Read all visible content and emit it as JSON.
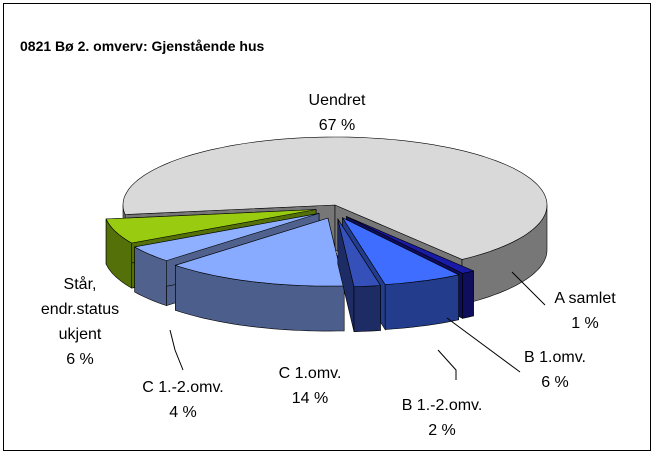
{
  "chart_data": {
    "type": "pie3d",
    "title": "0821 Bø  2. omverv: Gjenstående hus",
    "categories": [
      "Uendret",
      "A samlet",
      "B 1.omv.",
      "B 1.-2.omv.",
      "C 1.omv.",
      "C 1.-2.omv.",
      "Står, endr.status ukjent"
    ],
    "values": [
      67,
      1,
      6,
      2,
      14,
      4,
      6
    ],
    "value_labels": [
      "67 %",
      "1 %",
      "6 %",
      "2 %",
      "14 %",
      "4 %",
      "6 %"
    ],
    "colors": [
      "#d9d9d9",
      "#1a1aa8",
      "#3f6dff",
      "#3550b8",
      "#88aaff",
      "#8fb0ff",
      "#99cc11"
    ]
  }
}
